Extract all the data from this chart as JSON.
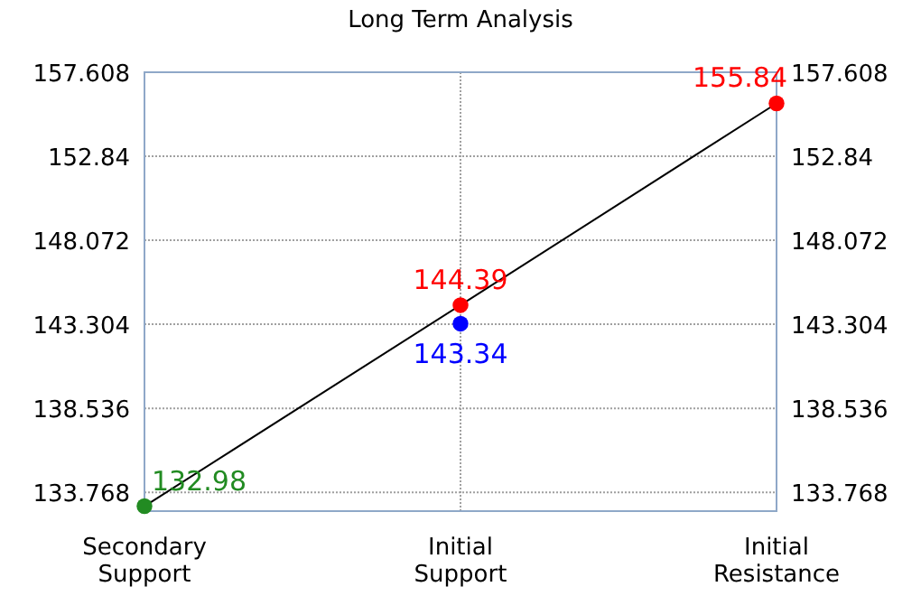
{
  "chart_data": {
    "type": "line",
    "title": "Long Term Analysis",
    "categories": [
      "Secondary\nSupport",
      "Initial\nSupport",
      "Initial\nResistance"
    ],
    "ylim": [
      132.7,
      157.608
    ],
    "yticks": [
      133.768,
      138.536,
      143.304,
      148.072,
      152.84,
      157.608
    ],
    "y2lim": [
      132.7,
      157.608
    ],
    "y2ticks": [
      133.768,
      138.536,
      143.304,
      148.072,
      152.84,
      157.608
    ],
    "series": [
      {
        "color": "#000000",
        "values": [
          132.98,
          144.39,
          155.84
        ],
        "colors": [
          "#228b22",
          "#ff0000",
          "#ff0000"
        ]
      },
      {
        "type": "scatter",
        "color": "#0000ff",
        "x": [
          "Initial\nSupport"
        ],
        "values": [
          143.34
        ]
      }
    ],
    "marker": "circle",
    "data_labels": true,
    "grid": true
  }
}
